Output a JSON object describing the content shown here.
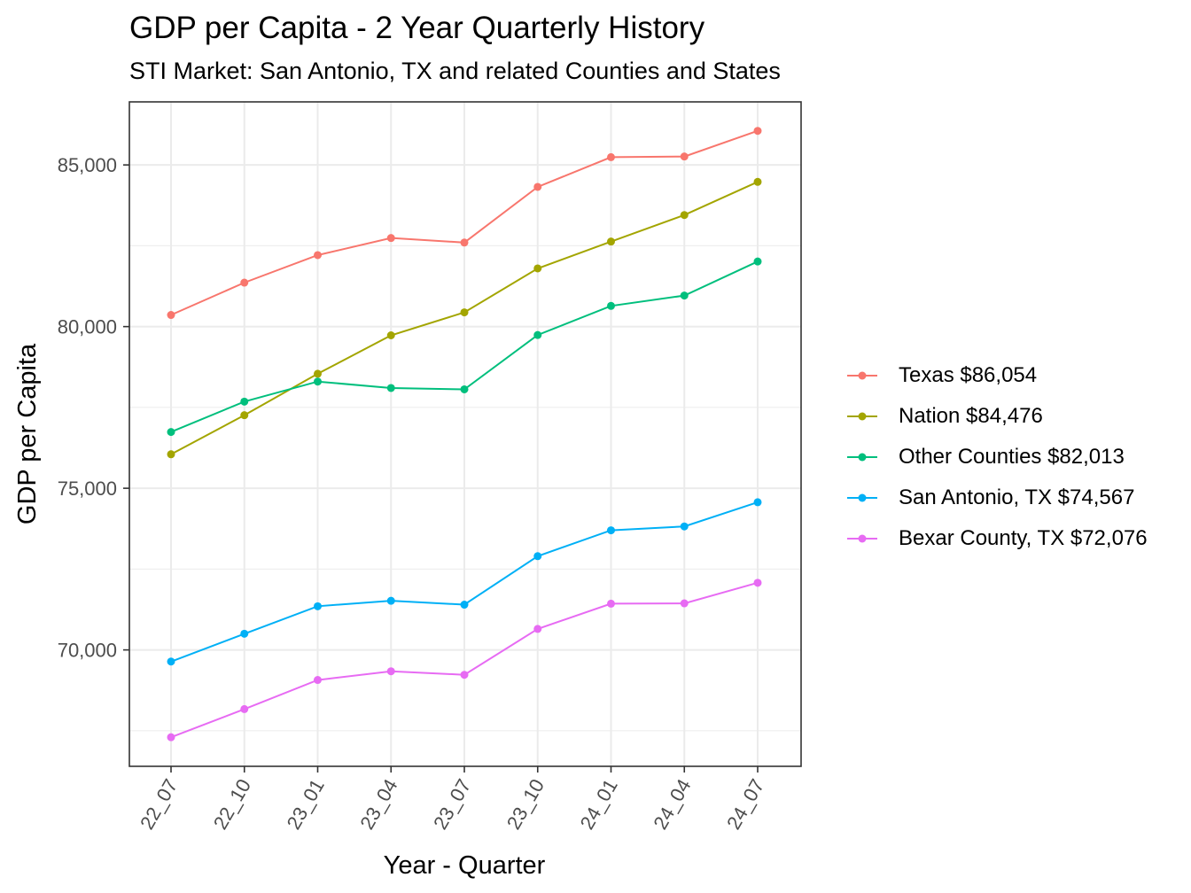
{
  "chart_data": {
    "type": "line",
    "title": "GDP per Capita - 2 Year Quarterly History",
    "subtitle": "STI Market: San Antonio, TX and related Counties and States",
    "xlabel": "Year - Quarter",
    "ylabel": "GDP per Capita",
    "categories": [
      "22_07",
      "22_10",
      "23_01",
      "23_04",
      "23_07",
      "23_10",
      "24_01",
      "24_04",
      "24_07"
    ],
    "ylim": [
      66400,
      86950
    ],
    "yticks": [
      70000,
      75000,
      80000,
      85000
    ],
    "ytick_labels": [
      "70,000",
      "75,000",
      "80,000",
      "85,000"
    ],
    "grid": true,
    "legend_position": "right",
    "series": [
      {
        "name": "Texas",
        "legend_label": "Texas $86,054",
        "color": "#F8766D",
        "values": [
          80360,
          81360,
          82210,
          82740,
          82600,
          84320,
          85240,
          85260,
          86054
        ]
      },
      {
        "name": "Nation",
        "legend_label": "Nation $84,476",
        "color": "#A3A500",
        "values": [
          76050,
          77260,
          78540,
          79730,
          80440,
          81800,
          82630,
          83450,
          84476
        ]
      },
      {
        "name": "Other Counties",
        "legend_label": "Other Counties $82,013",
        "color": "#00BF7D",
        "values": [
          76740,
          77680,
          78300,
          78100,
          78060,
          79740,
          80640,
          80960,
          82013
        ]
      },
      {
        "name": "San Antonio, TX",
        "legend_label": "San Antonio, TX $74,567",
        "color": "#00B0F6",
        "values": [
          69640,
          70500,
          71350,
          71520,
          71400,
          72900,
          73700,
          73820,
          74567
        ]
      },
      {
        "name": "Bexar County, TX",
        "legend_label": "Bexar County, TX $72,076",
        "color": "#E76BF3",
        "values": [
          67300,
          68170,
          69070,
          69340,
          69230,
          70650,
          71430,
          71440,
          72076
        ]
      }
    ]
  }
}
